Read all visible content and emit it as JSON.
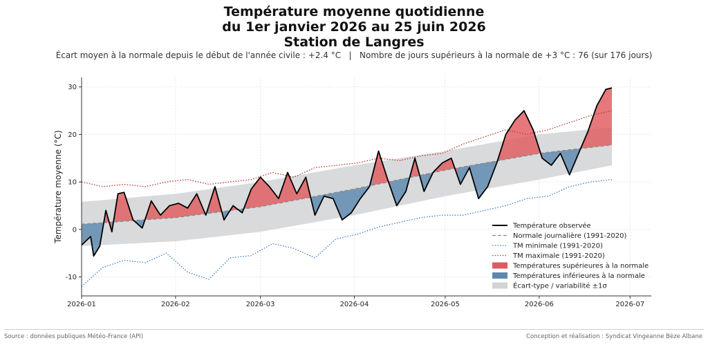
{
  "header": {
    "title_line1": "Température moyenne quotidienne",
    "title_line2": "du 1er janvier 2026 au 25 juin 2026",
    "title_line3": "Station de Langres",
    "subtitle": "Écart moyen à la normale depuis le début de l'année civile : +2.4 °C   |   Nombre de jours supérieurs à la normale de +3 °C : 76 (sur 176 jours)"
  },
  "footer": {
    "source": "Source : données publiques Météo-France (API)",
    "credit": "Conception et réalisation : Syndicat Vingeanne Bèze Albane"
  },
  "colors": {
    "observed": "#000000",
    "normal": "#888888",
    "tmin": "#3a7cc4",
    "tmax": "#c0302c",
    "above": "#e05a5e",
    "below": "#5c88ae",
    "band": "#d2d3d5"
  },
  "chart_data": {
    "type": "line",
    "ylabel": "Température moyenne (°C)",
    "xlabel": "",
    "ylim": [
      -14,
      32
    ],
    "yticks": [
      -10,
      0,
      10,
      20,
      30
    ],
    "xticks": [
      "2026-01",
      "2026-02",
      "2026-03",
      "2026-04",
      "2026-05",
      "2026-06",
      "2026-07"
    ],
    "x_start": "2026-01-01",
    "x_end": "2026-06-25",
    "grid": true,
    "legend_position": "lower right",
    "legend": [
      "Température observée",
      "Normale journalière (1991-2020)",
      "TM minimale (1991-2020)",
      "TM maximale (1991-2020)",
      "Températures supérieures à la normale",
      "Températures inférieures à la normale",
      "Écart-type / variabilité ±1σ"
    ],
    "series": [
      {
        "name": "Température observée",
        "x": [
          "2026-01-01",
          "2026-01-04",
          "2026-01-05",
          "2026-01-07",
          "2026-01-09",
          "2026-01-11",
          "2026-01-13",
          "2026-01-15",
          "2026-01-18",
          "2026-01-21",
          "2026-01-24",
          "2026-01-27",
          "2026-01-30",
          "2026-02-02",
          "2026-02-05",
          "2026-02-08",
          "2026-02-11",
          "2026-02-14",
          "2026-02-17",
          "2026-02-20",
          "2026-02-23",
          "2026-02-26",
          "2026-03-01",
          "2026-03-04",
          "2026-03-07",
          "2026-03-10",
          "2026-03-13",
          "2026-03-16",
          "2026-03-19",
          "2026-03-22",
          "2026-03-25",
          "2026-03-28",
          "2026-03-31",
          "2026-04-03",
          "2026-04-06",
          "2026-04-09",
          "2026-04-12",
          "2026-04-15",
          "2026-04-18",
          "2026-04-21",
          "2026-04-24",
          "2026-04-27",
          "2026-04-30",
          "2026-05-03",
          "2026-05-06",
          "2026-05-09",
          "2026-05-12",
          "2026-05-15",
          "2026-05-18",
          "2026-05-21",
          "2026-05-24",
          "2026-05-27",
          "2026-05-30",
          "2026-06-02",
          "2026-06-05",
          "2026-06-08",
          "2026-06-11",
          "2026-06-14",
          "2026-06-17",
          "2026-06-20",
          "2026-06-23",
          "2026-06-25"
        ],
        "y": [
          -3.3,
          -1.5,
          -5.6,
          -3.5,
          4.0,
          -0.5,
          7.5,
          7.8,
          2.0,
          0.3,
          6.0,
          3.0,
          5.0,
          5.5,
          4.5,
          7.5,
          3.0,
          9.0,
          2.0,
          5.0,
          3.5,
          8.5,
          11.0,
          9.0,
          6.5,
          12.0,
          7.5,
          11.0,
          3.0,
          7.0,
          6.5,
          2.0,
          3.5,
          6.5,
          9.0,
          16.5,
          10.5,
          5.0,
          8.0,
          15.0,
          8.0,
          12.0,
          14.0,
          15.0,
          9.5,
          13.0,
          6.5,
          9.0,
          14.0,
          20.0,
          23.0,
          25.0,
          21.0,
          15.0,
          13.5,
          16.0,
          11.5,
          16.0,
          20.5,
          26.0,
          29.5,
          29.8
        ]
      },
      {
        "name": "Normale journalière (1991-2020)",
        "x": [
          "2026-01-01",
          "2026-02-01",
          "2026-03-01",
          "2026-04-01",
          "2026-05-01",
          "2026-06-01",
          "2026-06-25"
        ],
        "y": [
          1.1,
          2.5,
          4.8,
          8.5,
          12.5,
          16.0,
          17.8
        ]
      },
      {
        "name": "TM minimale (1991-2020)",
        "x": [
          "2026-01-01",
          "2026-01-08",
          "2026-01-15",
          "2026-01-22",
          "2026-01-29",
          "2026-02-05",
          "2026-02-12",
          "2026-02-19",
          "2026-02-26",
          "2026-03-05",
          "2026-03-12",
          "2026-03-19",
          "2026-03-26",
          "2026-04-02",
          "2026-04-09",
          "2026-04-16",
          "2026-04-23",
          "2026-04-30",
          "2026-05-07",
          "2026-05-14",
          "2026-05-21",
          "2026-05-28",
          "2026-06-04",
          "2026-06-11",
          "2026-06-18",
          "2026-06-25"
        ],
        "y": [
          -12.0,
          -8.0,
          -6.5,
          -7.0,
          -5.0,
          -9.0,
          -10.5,
          -6.0,
          -5.5,
          -3.0,
          -4.0,
          -6.0,
          -2.0,
          -1.0,
          0.5,
          1.5,
          2.5,
          3.0,
          3.0,
          4.0,
          5.0,
          6.5,
          7.0,
          9.0,
          10.0,
          10.5
        ]
      },
      {
        "name": "TM maximale (1991-2020)",
        "x": [
          "2026-01-01",
          "2026-01-08",
          "2026-01-15",
          "2026-01-22",
          "2026-01-29",
          "2026-02-05",
          "2026-02-12",
          "2026-02-19",
          "2026-02-26",
          "2026-03-05",
          "2026-03-12",
          "2026-03-19",
          "2026-03-26",
          "2026-04-02",
          "2026-04-09",
          "2026-04-16",
          "2026-04-23",
          "2026-04-30",
          "2026-05-07",
          "2026-05-14",
          "2026-05-21",
          "2026-05-28",
          "2026-06-04",
          "2026-06-11",
          "2026-06-18",
          "2026-06-25"
        ],
        "y": [
          10.0,
          9.0,
          9.5,
          9.0,
          10.0,
          10.5,
          9.5,
          10.0,
          10.5,
          12.0,
          11.0,
          13.0,
          13.5,
          14.0,
          15.0,
          14.5,
          15.5,
          16.0,
          18.0,
          19.5,
          21.0,
          20.0,
          21.0,
          22.5,
          24.0,
          25.0
        ]
      },
      {
        "name": "Écart-type / variabilité ±1σ",
        "x": [
          "2026-01-01",
          "2026-02-01",
          "2026-03-01",
          "2026-04-01",
          "2026-05-01",
          "2026-06-01",
          "2026-06-25"
        ],
        "y_low": [
          -3.5,
          -2.5,
          -0.5,
          3.0,
          7.0,
          10.5,
          13.5
        ],
        "y_high": [
          5.8,
          7.5,
          10.0,
          13.5,
          16.5,
          20.0,
          21.5
        ]
      }
    ]
  }
}
